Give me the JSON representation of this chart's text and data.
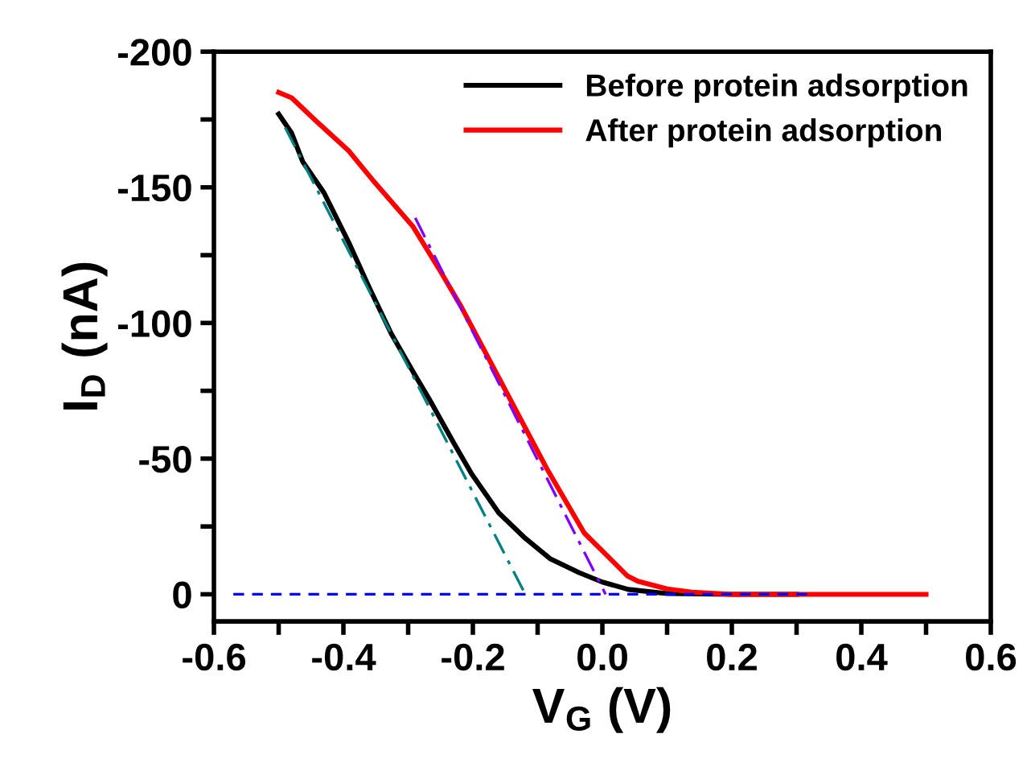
{
  "chart_data": {
    "type": "line",
    "xlabel": "V$_{G}$ (V)",
    "ylabel": "I$_{D}$ (nA)",
    "xlim": [
      -0.6,
      0.6
    ],
    "xticks": [
      {
        "value": -0.6,
        "label": "-0.6"
      },
      {
        "value": -0.5,
        "label": null
      },
      {
        "value": -0.4,
        "label": "-0.4"
      },
      {
        "value": -0.3,
        "label": null
      },
      {
        "value": -0.2,
        "label": "-0.2"
      },
      {
        "value": -0.1,
        "label": null
      },
      {
        "value": 0,
        "label": "0.0"
      },
      {
        "value": 0.1,
        "label": null
      },
      {
        "value": 0.2,
        "label": "0.2"
      },
      {
        "value": 0.3,
        "label": null
      },
      {
        "value": 0.4,
        "label": "0.4"
      },
      {
        "value": 0.5,
        "label": null
      },
      {
        "value": 0.6,
        "label": "0.6"
      }
    ],
    "ylim": [
      10,
      -200
    ],
    "yticks": [
      -200,
      {
        "value": -175,
        "label": null
      },
      -150,
      {
        "value": -125,
        "label": null
      },
      -100,
      {
        "value": -75,
        "label": null
      },
      -50,
      {
        "value": -25,
        "label": null
      },
      0
    ],
    "legend": "top right",
    "grid": false,
    "line_style": "solid",
    "series": [
      {
        "name": "Before protein adsorption",
        "color": "#000000",
        "x": [
          -0.5,
          -0.48,
          -0.463,
          -0.43,
          -0.392,
          -0.36,
          -0.326,
          -0.29,
          -0.268,
          -0.23,
          -0.202,
          -0.16,
          -0.119,
          -0.08,
          -0.036,
          0.0,
          0.04,
          0.1,
          0.2,
          0.3
        ],
        "values": [
          -177,
          -170,
          -159.5,
          -148,
          -129.8,
          -113,
          -96,
          -81,
          -72.2,
          -56,
          -44.4,
          -30,
          -20.6,
          -13,
          -8,
          -4.5,
          -1.8,
          -0.3,
          0,
          0
        ]
      },
      {
        "name": "After protein adsorption",
        "color": "#ff0000",
        "x": [
          -0.5,
          -0.48,
          -0.442,
          -0.392,
          -0.351,
          -0.293,
          -0.25,
          -0.218,
          -0.152,
          -0.086,
          -0.028,
          0.039,
          0.055,
          0.1,
          0.138,
          0.2,
          0.3,
          0.4,
          0.5
        ],
        "values": [
          -185,
          -183,
          -174.4,
          -163.5,
          -151.6,
          -135.7,
          -119,
          -106,
          -76.2,
          -46.4,
          -22.6,
          -6.7,
          -4.8,
          -2,
          -0.8,
          0,
          0,
          0,
          0
        ]
      },
      {
        "type": "line",
        "color": "#008080",
        "line_style": "dashdot",
        "x": [
          -0.49,
          -0.119
        ],
        "values": [
          -172,
          0
        ]
      },
      {
        "type": "line",
        "color": "#8000ff",
        "line_style": "dashdot",
        "x": [
          -0.289,
          0.005
        ],
        "values": [
          -138.7,
          0
        ]
      },
      {
        "type": "line",
        "color": "#0000ff",
        "line_style": "dashed",
        "x": [
          -0.57,
          0.32
        ],
        "values": [
          0,
          0
        ]
      }
    ]
  }
}
